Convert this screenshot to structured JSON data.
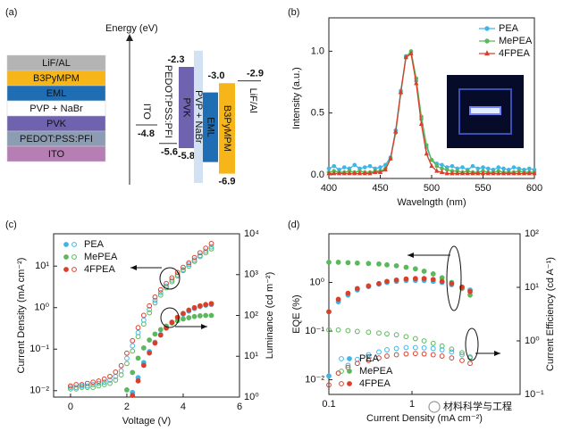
{
  "diagram": {
    "panel_label": "(a)",
    "energy_axis_label": "Energy (eV)",
    "stack": [
      {
        "name": "LiF/AL",
        "color": "#b4b4b4"
      },
      {
        "name": "B3PyMPM",
        "color": "#f6b619"
      },
      {
        "name": "EML",
        "color": "#1f6db3"
      },
      {
        "name": "PVP + NaBr",
        "color": "#ffffff"
      },
      {
        "name": "PVK",
        "color": "#6f63b0"
      },
      {
        "name": "PEDOT:PSS:PFI",
        "color": "#8c9db3"
      },
      {
        "name": "ITO",
        "color": "#b57fb4"
      }
    ],
    "levels": [
      {
        "name": "ITO",
        "level": -4.8
      },
      {
        "name": "PEDOT:PSS:PFI",
        "level": -5.6
      },
      {
        "name": "PVK",
        "top": -2.3,
        "bottom": -5.8,
        "color": "#6f63b0"
      },
      {
        "name": "PVP + NaBr",
        "range": [
          -1.6,
          -7.3
        ],
        "color": "#d3e2f3"
      },
      {
        "name": "EML",
        "range": [
          -3.4,
          -6.4
        ],
        "color": "#1f6db3"
      },
      {
        "name": "B3PyMPM",
        "top": {
          "value": -3.0,
          "label": "-3.0"
        },
        "bottom": -6.9,
        "color": "#f6b619"
      },
      {
        "name": "LiF/Al",
        "level": -2.9
      }
    ]
  },
  "chart_data": [
    {
      "type": "line",
      "panel_label": "(b)",
      "x_label": "Wavelngth (nm)",
      "y_label": "Intensity (a.u.)",
      "xlim": [
        400,
        600
      ],
      "xticks": [
        400,
        450,
        500,
        550,
        600
      ],
      "ylim": [
        -0.03,
        1.27
      ],
      "yticks": [
        {
          "value": 0,
          "label": "0.0"
        },
        0.5,
        {
          "value": 1,
          "label": "1.0"
        }
      ],
      "legend": "upper right",
      "x": [
        400,
        405,
        410,
        415,
        420,
        425,
        430,
        435,
        440,
        445,
        450,
        455,
        460,
        465,
        470,
        475,
        480,
        485,
        490,
        495,
        500,
        505,
        510,
        515,
        520,
        525,
        530,
        535,
        540,
        545,
        550,
        555,
        560,
        565,
        570,
        575,
        580,
        585,
        590,
        595,
        600
      ],
      "series": [
        {
          "name": "PEA",
          "color": "#3fb5e8",
          "marker": "circle",
          "values": [
            0.05,
            0.07,
            0.04,
            0.06,
            0.05,
            0.08,
            0.05,
            0.06,
            0.07,
            0.05,
            0.06,
            0.08,
            0.14,
            0.36,
            0.68,
            0.96,
            0.99,
            0.76,
            0.45,
            0.22,
            0.12,
            0.09,
            0.08,
            0.06,
            0.07,
            0.05,
            0.06,
            0.04,
            0.07,
            0.05,
            0.06,
            0.05,
            0.04,
            0.06,
            0.05,
            0.04,
            0.06,
            0.05,
            0.04,
            0.05,
            0.04
          ]
        },
        {
          "name": "MePEA",
          "color": "#5cb85c",
          "marker": "circle",
          "values": [
            0.02,
            0.03,
            0.02,
            0.02,
            0.03,
            0.02,
            0.03,
            0.02,
            0.02,
            0.03,
            0.03,
            0.05,
            0.13,
            0.34,
            0.66,
            0.95,
            1.0,
            0.78,
            0.47,
            0.24,
            0.12,
            0.07,
            0.05,
            0.04,
            0.03,
            0.03,
            0.02,
            0.03,
            0.02,
            0.02,
            0.03,
            0.02,
            0.02,
            0.03,
            0.02,
            0.02,
            0.02,
            0.03,
            0.02,
            0.02,
            0.02
          ]
        },
        {
          "name": "4FPEA",
          "color": "#d9402b",
          "marker": "triangle",
          "values": [
            0.01,
            0.01,
            0.01,
            0.01,
            0.01,
            0.01,
            0.01,
            0.01,
            0.01,
            0.02,
            0.02,
            0.04,
            0.13,
            0.35,
            0.67,
            0.95,
            0.98,
            0.74,
            0.41,
            0.17,
            0.07,
            0.03,
            0.02,
            0.01,
            0.01,
            0.01,
            0.01,
            0.01,
            0.01,
            0.01,
            0.01,
            0.01,
            0.01,
            0.01,
            0.01,
            0.01,
            0.01,
            0.01,
            0.01,
            0.01,
            0.01
          ]
        }
      ]
    },
    {
      "type": "scatter",
      "panel_label": "(c)",
      "x_label": "Voltage (V)",
      "y_label": "Current Density (mA cm⁻²)",
      "y2_label": "Luminance (cd m⁻²)",
      "xlim": [
        -0.6,
        6
      ],
      "xticks": [
        0,
        2,
        4,
        6
      ],
      "yscale": "log",
      "ylim": [
        0.007,
        60
      ],
      "yticks": [
        {
          "value": 0.01,
          "label": "10⁻²"
        },
        {
          "value": 0.1,
          "label": "10⁻¹"
        },
        {
          "value": 1,
          "label": "10⁰"
        },
        {
          "value": 10,
          "label": "10¹"
        }
      ],
      "y2scale": "log",
      "y2lim": [
        1,
        10000
      ],
      "y2ticks": [
        {
          "value": 1,
          "label": "10⁰"
        },
        {
          "value": 10,
          "label": "10¹"
        },
        {
          "value": 100,
          "label": "10²"
        },
        {
          "value": 1000,
          "label": "10³"
        },
        {
          "value": 10000,
          "label": "10⁴"
        }
      ],
      "filled_axis": "y2",
      "legend": "upper left",
      "x": [
        0,
        0.2,
        0.4,
        0.6,
        0.8,
        1.0,
        1.2,
        1.4,
        1.6,
        1.8,
        2.0,
        2.2,
        2.4,
        2.6,
        2.8,
        3.0,
        3.2,
        3.4,
        3.6,
        3.8,
        4.0,
        4.2,
        4.4,
        4.6,
        4.8,
        5.0
      ],
      "series": [
        {
          "name": "PEA",
          "color": "#3fb5e8",
          "values": [
            0.012,
            0.012,
            0.013,
            0.013,
            0.014,
            0.015,
            0.016,
            0.018,
            0.022,
            0.03,
            0.06,
            0.12,
            0.25,
            0.5,
            0.9,
            1.5,
            2.3,
            3.3,
            4.6,
            6.2,
            8.2,
            11,
            14,
            18,
            23,
            29
          ],
          "y2_values": [
            null,
            null,
            null,
            null,
            null,
            null,
            null,
            null,
            null,
            null,
            null,
            1.3,
            3,
            7,
            13,
            22,
            34,
            50,
            68,
            88,
            108,
            128,
            148,
            165,
            178,
            185
          ]
        },
        {
          "name": "MePEA",
          "color": "#5cb85c",
          "values": [
            0.011,
            0.011,
            0.012,
            0.012,
            0.012,
            0.013,
            0.014,
            0.015,
            0.018,
            0.024,
            0.045,
            0.09,
            0.2,
            0.4,
            0.75,
            1.3,
            2.0,
            3.0,
            4.2,
            5.8,
            7.8,
            10,
            13,
            17,
            21,
            26
          ],
          "y2_values": [
            null,
            null,
            null,
            null,
            null,
            null,
            null,
            null,
            null,
            null,
            1.5,
            4,
            9,
            16,
            25,
            35,
            45,
            55,
            65,
            74,
            82,
            88,
            94,
            98,
            100,
            100
          ]
        },
        {
          "name": "4FPEA",
          "color": "#d9402b",
          "values": [
            0.013,
            0.014,
            0.014,
            0.015,
            0.016,
            0.017,
            0.019,
            0.022,
            0.028,
            0.04,
            0.08,
            0.16,
            0.33,
            0.65,
            1.1,
            1.8,
            2.7,
            3.8,
            5.2,
            7,
            9.3,
            12,
            16,
            21,
            27,
            35
          ],
          "y2_values": [
            null,
            null,
            null,
            null,
            null,
            null,
            null,
            null,
            null,
            null,
            null,
            1.1,
            2.5,
            6,
            12,
            21,
            33,
            49,
            68,
            90,
            112,
            135,
            155,
            172,
            185,
            195
          ]
        }
      ]
    },
    {
      "type": "scatter",
      "panel_label": "(d)",
      "x_label": "Current Density (mA cm⁻²)",
      "y_label": "EQE (%)",
      "y2_label": "Current Efficiency (cd A⁻¹)",
      "xscale": "log",
      "xlim": [
        0.1,
        20
      ],
      "xticks": [
        0.1,
        1
      ],
      "yscale": "log",
      "ylim": [
        0.005,
        10
      ],
      "yticks": [
        {
          "value": 0.01,
          "label": "10⁻²"
        },
        {
          "value": 0.1,
          "label": "10⁻¹"
        },
        {
          "value": 1,
          "label": "10⁰"
        }
      ],
      "y2scale": "log",
      "y2lim": [
        0.1,
        100
      ],
      "y2ticks": [
        {
          "value": 0.1,
          "label": "10⁻¹"
        },
        {
          "value": 1,
          "label": "10⁰"
        },
        {
          "value": 10,
          "label": "10¹"
        },
        {
          "value": 100,
          "label": "10²"
        }
      ],
      "filled_axis": "y",
      "legend": "lower left",
      "x": [
        0.1,
        0.13,
        0.17,
        0.22,
        0.3,
        0.4,
        0.5,
        0.65,
        0.85,
        1.1,
        1.4,
        1.8,
        2.3,
        3,
        4,
        5
      ],
      "series": [
        {
          "name": "PEA",
          "color": "#3fb5e8",
          "values": [
            0.012,
            0.4,
            0.55,
            0.7,
            0.82,
            0.92,
            1.0,
            1.05,
            1.1,
            1.1,
            1.1,
            1.05,
            1.0,
            0.9,
            0.8,
            0.7
          ],
          "y2_values": [
            null,
            0.25,
            0.35,
            0.45,
            0.55,
            0.62,
            0.68,
            0.72,
            0.75,
            0.75,
            0.74,
            0.72,
            0.68,
            0.62,
            0.55,
            0.48
          ]
        },
        {
          "name": "MePEA",
          "color": "#5cb85c",
          "values": [
            2.6,
            2.6,
            2.55,
            2.5,
            2.45,
            2.4,
            2.3,
            2.2,
            2.05,
            1.9,
            1.7,
            1.5,
            1.25,
            1.0,
            0.75,
            0.55
          ],
          "y2_values": [
            1.6,
            1.6,
            1.55,
            1.5,
            1.45,
            1.4,
            1.35,
            1.3,
            1.2,
            1.1,
            1.0,
            0.9,
            0.8,
            0.7,
            0.6,
            0.5
          ]
        },
        {
          "name": "4FPEA",
          "color": "#d9402b",
          "values": [
            0.25,
            0.45,
            0.6,
            0.75,
            0.85,
            0.95,
            1.05,
            1.12,
            1.18,
            1.2,
            1.2,
            1.15,
            1.05,
            0.95,
            0.8,
            0.65
          ],
          "y2_values": [
            0.15,
            0.25,
            0.32,
            0.38,
            0.43,
            0.48,
            0.52,
            0.55,
            0.57,
            0.58,
            0.57,
            0.55,
            0.52,
            0.48,
            0.43,
            0.38
          ]
        }
      ]
    }
  ],
  "watermark": "材料科学与工程"
}
